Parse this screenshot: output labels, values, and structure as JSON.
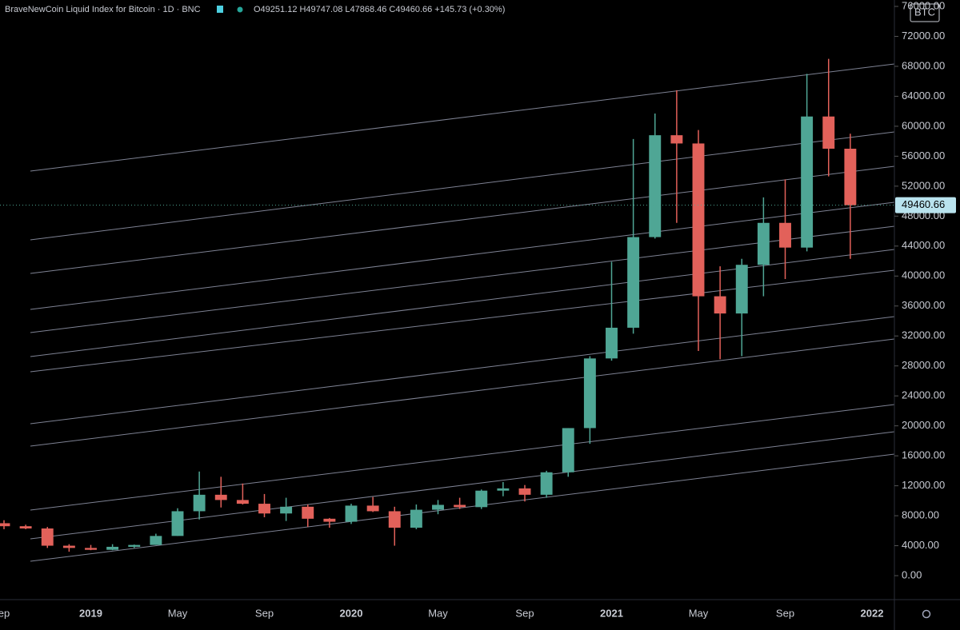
{
  "chart_data": {
    "type": "candlestick",
    "title": "BraveNewCoin Liquid Index for Bitcoin · 1D · BNC",
    "ohlc_text": "O49251.12 H49747.08 L47868.46 C49460.66 +145.73 (+0.30%)",
    "symbol_badge": "BTC",
    "categories": [
      "ep",
      null,
      null,
      null,
      "2019",
      null,
      null,
      null,
      "May",
      null,
      null,
      null,
      "Sep",
      null,
      null,
      null,
      "2020",
      null,
      null,
      null,
      "May",
      null,
      null,
      null,
      "Sep",
      null,
      null,
      null,
      "2021",
      null,
      null,
      null,
      "May",
      null,
      null,
      null,
      "Sep",
      null,
      null,
      null,
      "2022"
    ],
    "candles": {
      "open": [
        7000,
        6600,
        6300,
        4000,
        3700,
        3450,
        3850,
        4100,
        5300,
        8600,
        10800,
        10100,
        9600,
        8300,
        9200,
        7600,
        7200,
        9350,
        8600,
        6400,
        8800,
        9450,
        9150,
        11350,
        11650,
        10800,
        13800,
        19700,
        29000,
        33100,
        45200,
        58800,
        57700,
        37300,
        35000,
        41500,
        47100,
        43800,
        61300,
        57000,
        null
      ],
      "high": [
        7400,
        6800,
        6500,
        4200,
        4100,
        4200,
        4150,
        5600,
        9000,
        13900,
        13200,
        12300,
        10900,
        10400,
        9500,
        7700,
        9600,
        10500,
        9200,
        9500,
        10100,
        10400,
        11500,
        12500,
        12100,
        14000,
        19700,
        29300,
        41900,
        58300,
        61700,
        64800,
        59500,
        41300,
        42300,
        50500,
        52900,
        67000,
        69000,
        59000,
        null
      ],
      "low": [
        6200,
        6200,
        3700,
        3200,
        3400,
        3400,
        3700,
        4100,
        5300,
        7500,
        9100,
        9500,
        7800,
        7300,
        6500,
        6400,
        6900,
        8500,
        4000,
        6200,
        8200,
        8900,
        8900,
        10600,
        9900,
        10400,
        13200,
        17600,
        28700,
        32300,
        45000,
        47100,
        30000,
        28900,
        29300,
        37300,
        39600,
        43300,
        53300,
        42300,
        null
      ],
      "close": [
        6600,
        6300,
        4000,
        3700,
        3450,
        3850,
        4100,
        5300,
        8600,
        10800,
        10100,
        9600,
        8300,
        9200,
        7600,
        7200,
        9350,
        8600,
        6400,
        8800,
        9450,
        9150,
        11350,
        11650,
        10800,
        13800,
        19700,
        29000,
        33100,
        45200,
        58800,
        57700,
        37300,
        35000,
        41500,
        47100,
        43800,
        61300,
        57000,
        49460,
        null
      ]
    },
    "up_color": "#4fa695",
    "down_color": "#e2615a",
    "last_price": 49460.66,
    "ylim": [
      -3200,
      76000
    ],
    "yticks": [
      {
        "value": 0,
        "label": "0.00"
      },
      {
        "value": 4000,
        "label": "4000.00"
      },
      {
        "value": 8000,
        "label": "8000.00"
      },
      {
        "value": 12000,
        "label": "12000.00"
      },
      {
        "value": 16000,
        "label": "16000.00"
      },
      {
        "value": 20000,
        "label": "20000.00"
      },
      {
        "value": 24000,
        "label": "24000.00"
      },
      {
        "value": 28000,
        "label": "28000.00"
      },
      {
        "value": 32000,
        "label": "32000.00"
      },
      {
        "value": 36000,
        "label": "36000.00"
      },
      {
        "value": 40000,
        "label": "40000.00"
      },
      {
        "value": 44000,
        "label": "44000.00"
      },
      {
        "value": 48000,
        "label": "48000.00"
      },
      {
        "value": 52000,
        "label": "52000.00"
      },
      {
        "value": 56000,
        "label": "56000.00"
      },
      {
        "value": 60000,
        "label": "60000.00"
      },
      {
        "value": 64000,
        "label": "64000.00"
      },
      {
        "value": 68000,
        "label": "68000.00"
      },
      {
        "value": 72000,
        "label": "72000.00"
      },
      {
        "value": 76000,
        "label": "76000.00"
      }
    ]
  }
}
